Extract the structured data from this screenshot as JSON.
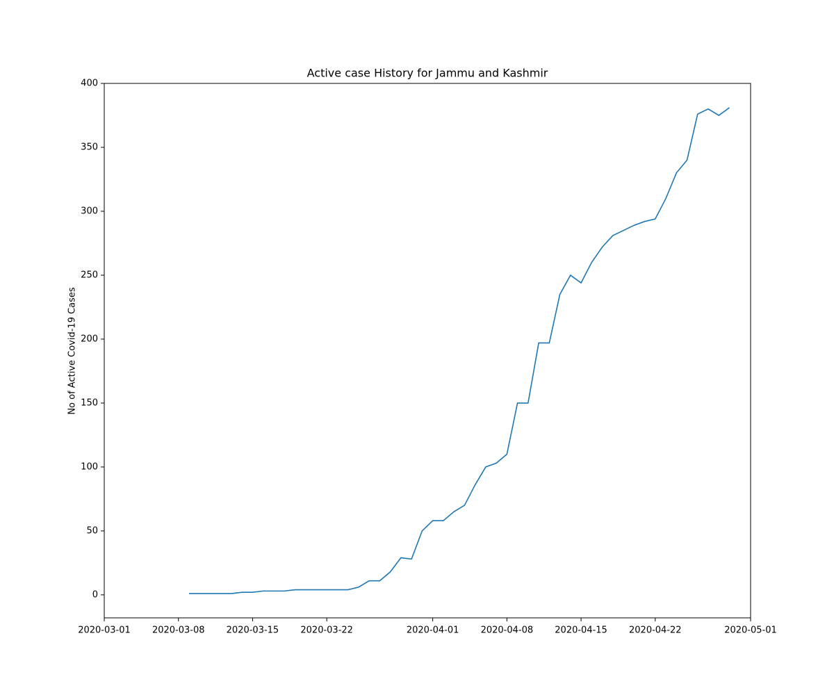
{
  "chart_data": {
    "type": "line",
    "title": "Active case History for Jammu and Kashmir",
    "y_label": "No of Active Covid-19 Cases",
    "x": [
      "2020-03-09",
      "2020-03-10",
      "2020-03-11",
      "2020-03-12",
      "2020-03-13",
      "2020-03-14",
      "2020-03-15",
      "2020-03-16",
      "2020-03-17",
      "2020-03-18",
      "2020-03-19",
      "2020-03-20",
      "2020-03-21",
      "2020-03-22",
      "2020-03-23",
      "2020-03-24",
      "2020-03-25",
      "2020-03-26",
      "2020-03-27",
      "2020-03-28",
      "2020-03-29",
      "2020-03-30",
      "2020-03-31",
      "2020-04-01",
      "2020-04-02",
      "2020-04-03",
      "2020-04-04",
      "2020-04-05",
      "2020-04-06",
      "2020-04-07",
      "2020-04-08",
      "2020-04-09",
      "2020-04-10",
      "2020-04-11",
      "2020-04-12",
      "2020-04-13",
      "2020-04-14",
      "2020-04-15",
      "2020-04-16",
      "2020-04-17",
      "2020-04-18",
      "2020-04-19",
      "2020-04-20",
      "2020-04-21",
      "2020-04-22",
      "2020-04-23",
      "2020-04-24",
      "2020-04-25",
      "2020-04-26",
      "2020-04-27",
      "2020-04-28",
      "2020-04-29"
    ],
    "series": [
      {
        "color": "#1f77b4",
        "values": [
          1,
          1,
          1,
          1,
          1,
          2,
          2,
          3,
          3,
          3,
          4,
          4,
          4,
          4,
          4,
          4,
          6,
          11,
          11,
          18,
          29,
          28,
          50,
          58,
          58,
          65,
          70,
          86,
          100,
          103,
          110,
          150,
          150,
          197,
          197,
          235,
          250,
          244,
          260,
          272,
          281,
          285,
          289,
          292,
          294,
          310,
          330,
          340,
          376,
          380,
          375,
          381
        ]
      }
    ],
    "xlim": [
      "2020-03-01",
      "2020-05-01"
    ],
    "xticks": [
      "2020-03-01",
      "2020-03-08",
      "2020-03-15",
      "2020-03-22",
      "2020-04-01",
      "2020-04-08",
      "2020-04-15",
      "2020-04-22",
      "2020-05-01"
    ],
    "ylim": [
      -18,
      400
    ],
    "yticks": [
      0,
      50,
      100,
      150,
      200,
      250,
      300,
      350,
      400
    ],
    "grid": false
  }
}
